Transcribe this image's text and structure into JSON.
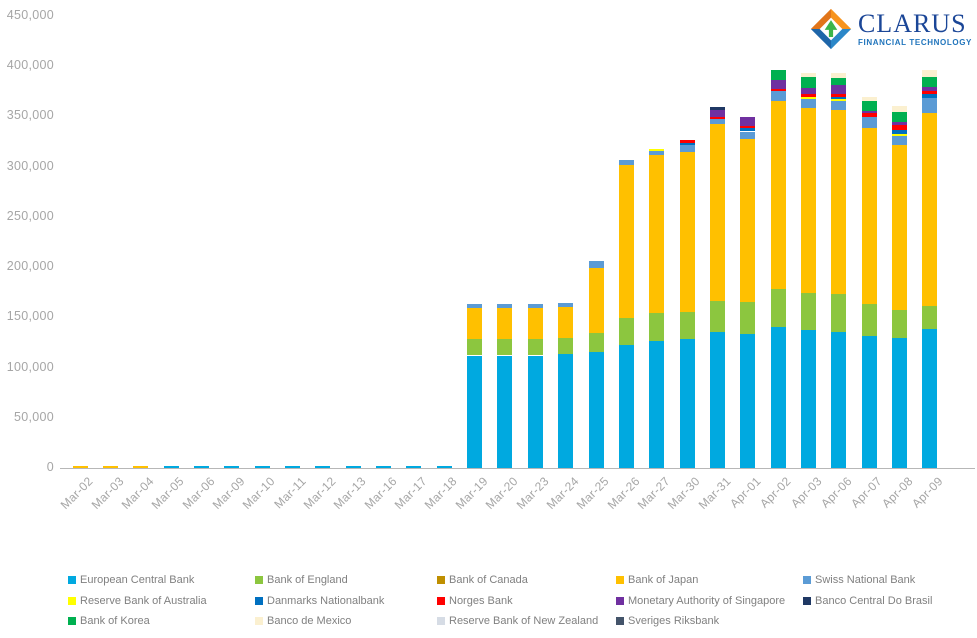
{
  "logo": {
    "title": "CLARUS",
    "subtitle": "FINANCIAL TECHNOLOGY",
    "title_color": "#1b4697",
    "subtitle_color": "#2175bc",
    "icon_colors": {
      "orange_light": "#f7941e",
      "orange_dark": "#e1751a",
      "blue_dark": "#1f66a9",
      "blue_light": "#2b87c8",
      "green": "#3bb54a",
      "white": "#ffffff"
    }
  },
  "chart_data": {
    "type": "bar",
    "stacked": true,
    "title": "",
    "xlabel": "",
    "ylabel": "",
    "grid": false,
    "legend_position": "bottom",
    "ylim": [
      0,
      450000
    ],
    "ytick_interval": 50000,
    "ytick_labels": [
      "0",
      "50,000",
      "100,000",
      "150,000",
      "200,000",
      "250,000",
      "300,000",
      "350,000",
      "400,000",
      "450,000"
    ],
    "axis_color": "#b7b7b7",
    "tick_label_color": "#a6a6a6",
    "categories": [
      "Mar-02",
      "Mar-03",
      "Mar-04",
      "Mar-05",
      "Mar-06",
      "Mar-09",
      "Mar-10",
      "Mar-11",
      "Mar-12",
      "Mar-13",
      "Mar-16",
      "Mar-17",
      "Mar-18",
      "Mar-19",
      "Mar-20",
      "Mar-23",
      "Mar-24",
      "Mar-25",
      "Mar-26",
      "Mar-27",
      "Mar-30",
      "Mar-31",
      "Apr-01",
      "Apr-02",
      "Apr-03",
      "Apr-06",
      "Apr-07",
      "Apr-08",
      "Apr-09"
    ],
    "series": [
      {
        "name": "European Central Bank",
        "color": "#00a9e0",
        "values": [
          0,
          0,
          0,
          1500,
          1500,
          1500,
          1500,
          1500,
          1500,
          1500,
          1500,
          1500,
          1500,
          112000,
          112000,
          112000,
          113000,
          115000,
          122000,
          126000,
          128000,
          135000,
          133000,
          140000,
          137000,
          135000,
          131000,
          129000,
          138000
        ]
      },
      {
        "name": "Bank of England",
        "color": "#8cc63f",
        "values": [
          0,
          0,
          0,
          0,
          0,
          0,
          0,
          0,
          0,
          0,
          0,
          0,
          0,
          16000,
          16000,
          16000,
          16000,
          19000,
          27000,
          28000,
          27000,
          31000,
          32000,
          38000,
          37000,
          38000,
          32000,
          28000,
          23000
        ]
      },
      {
        "name": "Bank of Canada",
        "color": "#bf8f00",
        "values": [
          0,
          0,
          0,
          0,
          0,
          0,
          0,
          0,
          0,
          0,
          0,
          0,
          0,
          0,
          0,
          0,
          0,
          0,
          0,
          0,
          0,
          0,
          0,
          0,
          0,
          0,
          0,
          0,
          0
        ]
      },
      {
        "name": "Bank of Japan",
        "color": "#ffc000",
        "values": [
          2000,
          2000,
          2000,
          0,
          0,
          0,
          0,
          0,
          0,
          0,
          0,
          0,
          0,
          31000,
          31000,
          31000,
          31000,
          65000,
          153000,
          158000,
          160000,
          176000,
          163000,
          187000,
          184000,
          183000,
          175000,
          165000,
          192000
        ]
      },
      {
        "name": "Swiss National Bank",
        "color": "#5b9bd5",
        "values": [
          0,
          0,
          0,
          0,
          0,
          0,
          0,
          0,
          0,
          0,
          0,
          0,
          0,
          4000,
          4000,
          4000,
          4000,
          7000,
          5000,
          4000,
          7000,
          5000,
          7000,
          10000,
          9000,
          9000,
          11000,
          9000,
          15000
        ]
      },
      {
        "name": "Reserve Bank of Australia",
        "color": "#ffff00",
        "values": [
          0,
          0,
          0,
          0,
          0,
          0,
          0,
          0,
          0,
          0,
          0,
          0,
          0,
          0,
          0,
          0,
          0,
          0,
          0,
          2000,
          0,
          0,
          0,
          0,
          2000,
          2000,
          0,
          2000,
          0
        ]
      },
      {
        "name": "Danmarks Nationalbank",
        "color": "#0070c0",
        "values": [
          0,
          0,
          0,
          0,
          0,
          0,
          0,
          0,
          0,
          0,
          0,
          0,
          0,
          0,
          0,
          0,
          0,
          0,
          0,
          0,
          2000,
          0,
          3000,
          0,
          0,
          2000,
          0,
          4000,
          4000
        ]
      },
      {
        "name": "Norges Bank",
        "color": "#ff0000",
        "values": [
          0,
          0,
          0,
          0,
          0,
          0,
          0,
          0,
          0,
          0,
          0,
          0,
          0,
          0,
          0,
          0,
          0,
          0,
          0,
          0,
          3000,
          2000,
          2000,
          2000,
          3000,
          3000,
          4000,
          4000,
          3000
        ]
      },
      {
        "name": "Monetary Authority of Singapore",
        "color": "#7030a0",
        "values": [
          0,
          0,
          0,
          0,
          0,
          0,
          0,
          0,
          0,
          0,
          0,
          0,
          0,
          0,
          0,
          0,
          0,
          0,
          0,
          0,
          0,
          7000,
          9000,
          9000,
          6000,
          9000,
          2000,
          3000,
          4000
        ]
      },
      {
        "name": "Banco Central Do Brasil",
        "color": "#1f3864",
        "values": [
          0,
          0,
          0,
          0,
          0,
          0,
          0,
          0,
          0,
          0,
          0,
          0,
          0,
          0,
          0,
          0,
          0,
          0,
          0,
          0,
          0,
          3000,
          0,
          0,
          0,
          0,
          0,
          0,
          0
        ]
      },
      {
        "name": "Bank of Korea",
        "color": "#00b050",
        "values": [
          0,
          0,
          0,
          0,
          0,
          0,
          0,
          0,
          0,
          0,
          0,
          0,
          0,
          0,
          0,
          0,
          0,
          0,
          0,
          0,
          0,
          0,
          0,
          10000,
          11000,
          7000,
          10000,
          10000,
          10000
        ]
      },
      {
        "name": "Banco de Mexico",
        "color": "#fbf0d0",
        "values": [
          0,
          0,
          0,
          0,
          0,
          0,
          0,
          0,
          0,
          0,
          0,
          0,
          0,
          0,
          0,
          0,
          0,
          0,
          0,
          0,
          0,
          0,
          0,
          0,
          4000,
          5000,
          4000,
          6000,
          7000
        ]
      },
      {
        "name": "Reserve Bank of New Zealand",
        "color": "#d6dce5",
        "values": [
          0,
          0,
          0,
          0,
          0,
          0,
          0,
          0,
          0,
          0,
          0,
          0,
          0,
          0,
          0,
          0,
          0,
          0,
          0,
          0,
          0,
          0,
          0,
          0,
          0,
          0,
          0,
          0,
          0
        ]
      },
      {
        "name": "Sveriges Riksbank",
        "color": "#44546a",
        "values": [
          0,
          0,
          0,
          0,
          0,
          0,
          0,
          0,
          0,
          0,
          0,
          0,
          0,
          0,
          0,
          0,
          0,
          0,
          0,
          0,
          0,
          0,
          0,
          0,
          0,
          0,
          0,
          0,
          0
        ]
      }
    ]
  }
}
